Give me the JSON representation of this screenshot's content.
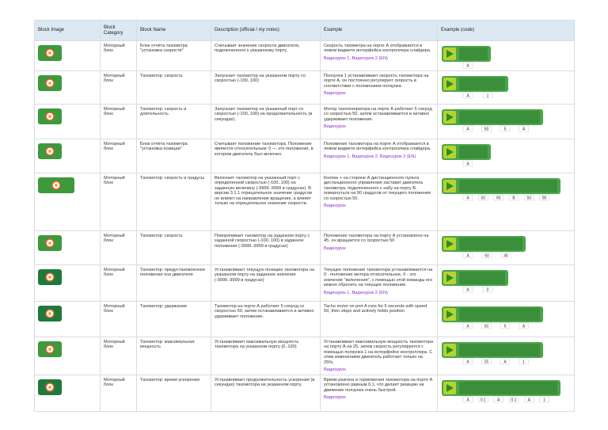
{
  "header": {
    "block_image": "Block Image",
    "block_category": "Block Category",
    "block_name": "Block Name",
    "description": "Description (official / ",
    "description_notes": "my notes",
    "description_end": ")",
    "example": "Example",
    "example_code": "Example (code)"
  },
  "rows": [
    {
      "category": "Моторный блок",
      "name": "Блок отчёта тахометра \"установка скорости\"",
      "description": "Считывает значение скорости двигателя, подключенного к указанному порту.",
      "example": "Скорость тахометра на порте А отображается в левом виджете интерфейса контроллера слайдера.",
      "links": "Видеоурок 1, Видеоурок 2 (EN)",
      "code": [
        "A"
      ]
    },
    {
      "category": "Моторный блок",
      "name": "Тахомотор: скорость",
      "description": "Запускает тахомотор на указанном порту со скоростью (-100..100)",
      "example": "Ползунок 1 устанавливает скорость тахомотора на порте А, он постоянно регулирует скорость в соответствии с положением ползунка.",
      "links": "Видеоурок",
      "code": [
        "A",
        "1"
      ]
    },
    {
      "category": "Моторный блок",
      "name": "Тахомотор: скорость и длительность",
      "description": "Запускает тахомотор на указанный порт со скоростью (-100..100) на продолжительность (в секундах).",
      "example": "Мотор тахогенератора на порте А работает 5 секунд со скоростью 50, затем останавливается и активно удерживает положение.",
      "links": "Видеоурок",
      "code": [
        "A",
        "50",
        "5",
        "A"
      ]
    },
    {
      "category": "Моторный блок",
      "name": "Блок отчёта тахометра \"установка позиции\"",
      "description": "Считывает положение тахомотора. Положение является относительным: 0 — это положение, в котором двигатель был включен.",
      "example": "Положение тахомотора на порте А отображается в левом виджете интерфейса контроллера слайдера.",
      "links": "Видеоурок 1, Видеоурок 2, Видеоурок 3 (EN)",
      "code": [
        "A"
      ]
    },
    {
      "category": "Моторный блок",
      "name": "Тахомотор: скорость и градусы",
      "description": "Включает тахомотор на указанный порт с определенной скоростью (-100..100) на заданную величину (-9999..9999 в градусах). В версии 3.1.1 отрицательное значение градусов не влияет на направление вращения, а влияет только на отрицательное значение скорости.",
      "example": "Кнопка + на стороне А дистанционного пульта дистанционного управления заставит двигатель тахометра, подключенного к хабу на порту B, повернуться на 90 градусов от текущего положения со скоростью 50.",
      "links": "Видеоурок",
      "code": [
        "A",
        "50",
        "90",
        "B",
        "50",
        "90"
      ]
    },
    {
      "category": "Моторный блок",
      "name": "Тахомотор: скорость",
      "description": "Поворачивает тахомотор на заданном порту с заданной скоростью (-100..100) в заданное положение (-9999..9999 в градусах)",
      "example": "Положение тахомотора на порту А установлено на 45, он вращается со скоростью 50",
      "links": "Видеоурок",
      "code": [
        "A",
        "50",
        "45"
      ]
    },
    {
      "category": "Моторный блок",
      "name": "Тахомотор: предустановленное положение оси двигателя",
      "description": "Устанавливает текущую позицию тахомотора на указанном порту на заданное значение (-9999..9999 в градусах)",
      "example": "Текущее положение тахомотора устанавливается на 0 - положение мотора относительное, 0 - это значение \"включения\", с помощью этой команды его можно сбросить на текущее положение.",
      "links": "Видеоурок 1, Видеоурок 2 (EN)",
      "code": [
        "A",
        "0"
      ]
    },
    {
      "category": "Моторный блок",
      "name": "Тахомотор: удержание",
      "description": "Тахомотор на порте А работает 5 секунд со скоростью 50, затем останавливается и активно удерживает положение.",
      "example": "Tacho motor on port A runs for 5 seconds with speed 50, then stops and actively holds position",
      "code": [
        "A",
        "50",
        "5",
        "A"
      ]
    },
    {
      "category": "Моторный блок",
      "name": "Тахомотор: максимальная мощность",
      "description": "Устанавливает максимальную мощность тахомотора на указанном порту (0..100)",
      "example": "Устанавливает максимальную мощность тахомотора на порту А на 25, затем скорость регулируется с помощью ползунка 1 на интерфейсе контроллера. С этим изменением двигатель работает только на 25%.",
      "links": "Видеоурок",
      "code": [
        "A",
        "25",
        "A",
        "1"
      ]
    },
    {
      "category": "Моторный блок",
      "name": "Тахомотор: время ускорения",
      "description": "Устанавливает продолжительность ускорения (в секундах) тахомотора на указанном порту.",
      "example": "Время разгона и торможения тахомотора на порте А установлено равным 0,1, что делает реакцию на движение ползунка очень быстрой.",
      "links": "Видеоурок",
      "code": [
        "A",
        "0.1",
        "A",
        "0.1",
        "A",
        "1"
      ]
    }
  ]
}
